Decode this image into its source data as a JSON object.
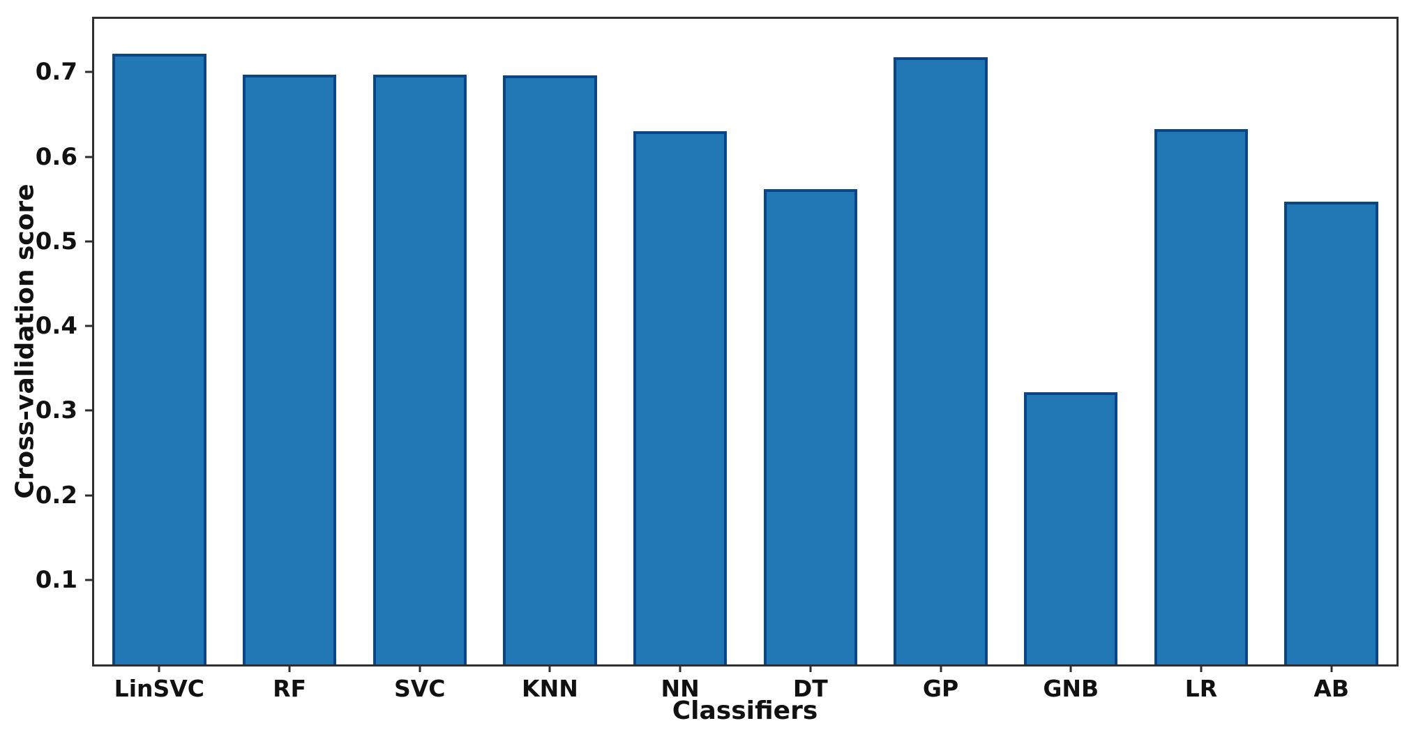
{
  "chart_data": {
    "type": "bar",
    "title": "",
    "xlabel": "Classifiers",
    "ylabel": "Cross-validation score",
    "categories": [
      "LinSVC",
      "RF",
      "SVC",
      "KNN",
      "NN",
      "DT",
      "GP",
      "GNB",
      "LR",
      "AB"
    ],
    "values": [
      0.722,
      0.697,
      0.697,
      0.696,
      0.63,
      0.562,
      0.718,
      0.322,
      0.633,
      0.547
    ],
    "yticks": [
      0.1,
      0.2,
      0.3,
      0.4,
      0.5,
      0.6,
      0.7
    ],
    "ytick_labels": [
      "0.1",
      "0.2",
      "0.3",
      "0.4",
      "0.5",
      "0.6",
      "0.7"
    ],
    "ylim": [
      0,
      0.763
    ],
    "grid": false,
    "legend": null,
    "bar_width_fraction": 0.72,
    "colors": {
      "bar_fill": "#2277b5",
      "bar_edge": "#0a4687",
      "spine": "#2e2e2e",
      "text": "#111111",
      "background": "#ffffff"
    }
  }
}
